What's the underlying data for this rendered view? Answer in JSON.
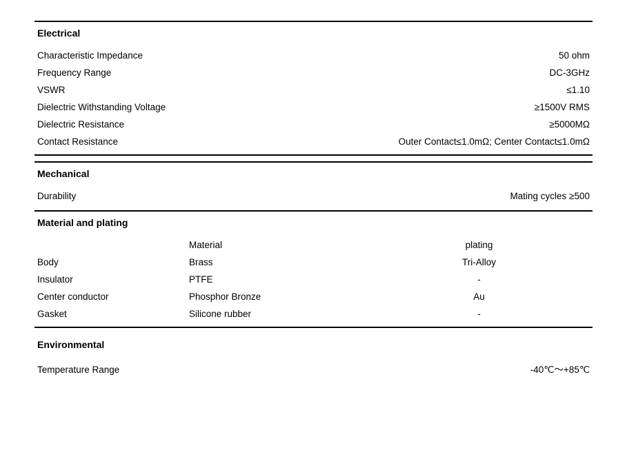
{
  "sections": {
    "electrical": {
      "title": "Electrical",
      "rows": [
        {
          "label": "Characteristic Impedance",
          "value": "50 ohm"
        },
        {
          "label": "Frequency Range",
          "value": "DC-3GHz"
        },
        {
          "label": "VSWR",
          "value": "≤1.10"
        },
        {
          "label": "Dielectric Withstanding Voltage",
          "value": "≥1500V  RMS"
        },
        {
          "label": "Dielectric Resistance",
          "value": "≥5000MΩ"
        },
        {
          "label": "Contact Resistance",
          "value": "Outer Contact≤1.0mΩ;   Center Contact≤1.0mΩ"
        }
      ]
    },
    "mechanical": {
      "title": "Mechanical",
      "rows": [
        {
          "label": "Durability",
          "value": "Mating cycles ≥500"
        }
      ]
    },
    "material": {
      "title": "Material and plating",
      "headers": {
        "name": "",
        "material": "Material",
        "plating": "plating"
      },
      "rows": [
        {
          "name": "Body",
          "material": "Brass",
          "plating": "Tri-Alloy"
        },
        {
          "name": "Insulator",
          "material": "PTFE",
          "plating": "-"
        },
        {
          "name": "Center conductor",
          "material": "Phosphor Bronze",
          "plating": "Au"
        },
        {
          "name": "Gasket",
          "material": "Silicone rubber",
          "plating": "-"
        }
      ]
    },
    "environmental": {
      "title": "Environmental",
      "rows": [
        {
          "label": "Temperature Range",
          "value": "-40℃～+85℃"
        }
      ]
    }
  }
}
